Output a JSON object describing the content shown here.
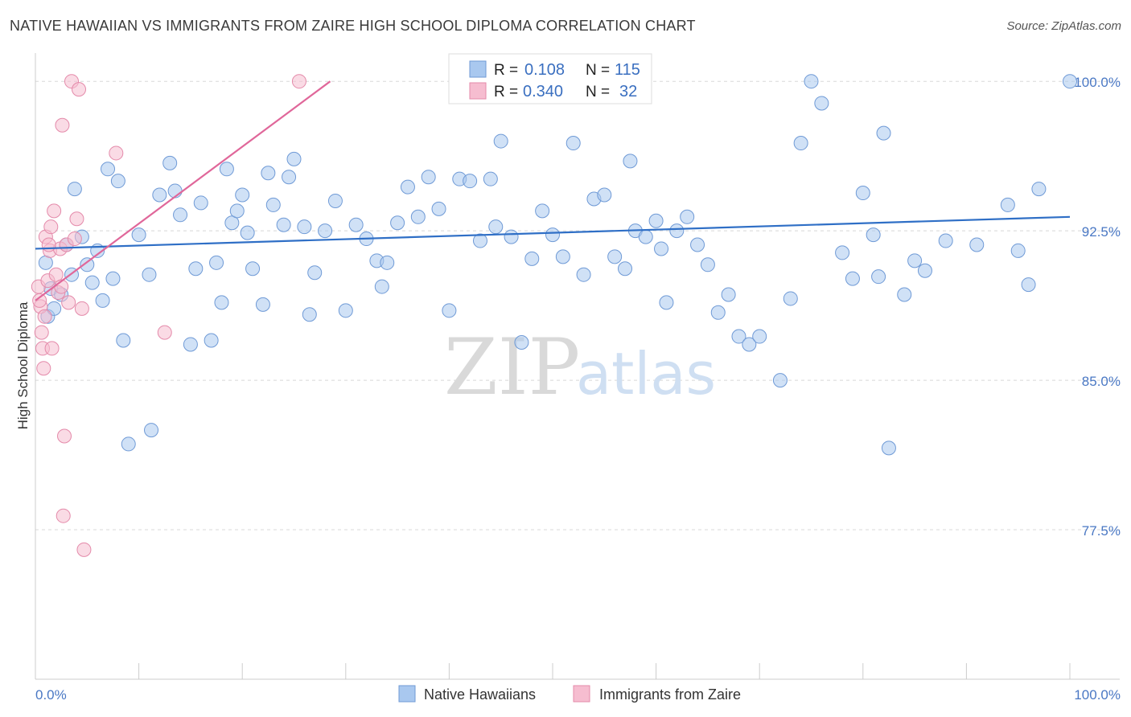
{
  "header": {
    "title": "NATIVE HAWAIIAN VS IMMIGRANTS FROM ZAIRE HIGH SCHOOL DIPLOMA CORRELATION CHART",
    "source": "Source: ZipAtlas.com"
  },
  "watermark": {
    "zip": "ZIP",
    "atlas": "atlas"
  },
  "chart_data": {
    "type": "scatter",
    "ylabel": "High School Diploma",
    "xlim": [
      0,
      100
    ],
    "ylim": [
      70.0,
      101.5
    ],
    "x_tick_labels": [
      {
        "value": 0,
        "label": "0.0%"
      },
      {
        "value": 100,
        "label": "100.0%"
      }
    ],
    "y_ticks": [
      {
        "value": 100.0,
        "label": "100.0%"
      },
      {
        "value": 92.5,
        "label": "92.5%"
      },
      {
        "value": 85.0,
        "label": "85.0%"
      },
      {
        "value": 77.5,
        "label": "77.5%"
      }
    ],
    "grid": true,
    "legend_position": "top-center",
    "colors": {
      "blue_fill": "#a9c8ef",
      "blue_stroke": "#6f9ad6",
      "blue_line": "#2f6fc6",
      "pink_fill": "#f6bdd0",
      "pink_stroke": "#e48aaa",
      "pink_line": "#e0679a",
      "grid": "#d8d8d8",
      "tick_text": "#4a78c4"
    },
    "stats": [
      {
        "r_label": "R =",
        "r_value": "0.108",
        "n_label": "N =",
        "n_value": "115"
      },
      {
        "r_label": "R =",
        "r_value": "0.340",
        "n_label": "N =",
        "n_value": "32"
      }
    ],
    "series": [
      {
        "name": "Native Hawaiians",
        "trend": [
          [
            0,
            91.6
          ],
          [
            100,
            93.2
          ]
        ],
        "points": [
          [
            1,
            90.9
          ],
          [
            1.5,
            89.6
          ],
          [
            1.2,
            88.2
          ],
          [
            2.5,
            89.3
          ],
          [
            3,
            91.8
          ],
          [
            3.5,
            90.3
          ],
          [
            3.8,
            94.6
          ],
          [
            4.5,
            92.2
          ],
          [
            5.5,
            89.9
          ],
          [
            6,
            91.5
          ],
          [
            6.5,
            89.0
          ],
          [
            7,
            95.6
          ],
          [
            8,
            95.0
          ],
          [
            8.5,
            87.0
          ],
          [
            9,
            81.8
          ],
          [
            10,
            92.3
          ],
          [
            11,
            90.3
          ],
          [
            11.2,
            82.5
          ],
          [
            12,
            94.3
          ],
          [
            13,
            95.9
          ],
          [
            13.5,
            94.5
          ],
          [
            14,
            93.3
          ],
          [
            15,
            86.8
          ],
          [
            15.5,
            90.6
          ],
          [
            16,
            93.9
          ],
          [
            17,
            87.0
          ],
          [
            17.5,
            90.9
          ],
          [
            18,
            88.9
          ],
          [
            18.5,
            95.6
          ],
          [
            19,
            92.9
          ],
          [
            19.5,
            93.5
          ],
          [
            20,
            94.3
          ],
          [
            21,
            90.6
          ],
          [
            22,
            88.8
          ],
          [
            22.5,
            95.4
          ],
          [
            23,
            93.8
          ],
          [
            24,
            92.8
          ],
          [
            24.5,
            95.2
          ],
          [
            25,
            96.1
          ],
          [
            26,
            92.7
          ],
          [
            26.5,
            88.3
          ],
          [
            27,
            90.4
          ],
          [
            28,
            92.5
          ],
          [
            29,
            94.0
          ],
          [
            30,
            88.5
          ],
          [
            31,
            92.8
          ],
          [
            32,
            92.1
          ],
          [
            33,
            91.0
          ],
          [
            34,
            90.9
          ],
          [
            35,
            92.9
          ],
          [
            36,
            94.7
          ],
          [
            37,
            93.2
          ],
          [
            38,
            95.2
          ],
          [
            39,
            93.6
          ],
          [
            40,
            88.5
          ],
          [
            41,
            95.1
          ],
          [
            42,
            95.0
          ],
          [
            43,
            92.0
          ],
          [
            44,
            95.1
          ],
          [
            45,
            97.0
          ],
          [
            46,
            92.2
          ],
          [
            47,
            86.9
          ],
          [
            48,
            91.1
          ],
          [
            49,
            93.5
          ],
          [
            50,
            92.3
          ],
          [
            51,
            91.2
          ],
          [
            52,
            96.9
          ],
          [
            53,
            90.3
          ],
          [
            54,
            94.1
          ],
          [
            55,
            94.3
          ],
          [
            56,
            91.2
          ],
          [
            57,
            90.6
          ],
          [
            57.5,
            96.0
          ],
          [
            58,
            92.5
          ],
          [
            59,
            92.2
          ],
          [
            60,
            93.0
          ],
          [
            61,
            88.9
          ],
          [
            62,
            92.5
          ],
          [
            63,
            93.2
          ],
          [
            64,
            91.8
          ],
          [
            65,
            90.8
          ],
          [
            66,
            88.4
          ],
          [
            67,
            89.3
          ],
          [
            68,
            87.2
          ],
          [
            69,
            86.8
          ],
          [
            70,
            87.2
          ],
          [
            72,
            85.0
          ],
          [
            74,
            96.9
          ],
          [
            75,
            100.0
          ],
          [
            76,
            98.9
          ],
          [
            78,
            91.4
          ],
          [
            79,
            90.1
          ],
          [
            80,
            94.4
          ],
          [
            81,
            92.3
          ],
          [
            81.5,
            90.2
          ],
          [
            82,
            97.4
          ],
          [
            82.5,
            81.6
          ],
          [
            84,
            89.3
          ],
          [
            85,
            91.0
          ],
          [
            88,
            92.0
          ],
          [
            91,
            91.8
          ],
          [
            94,
            93.8
          ],
          [
            95,
            91.5
          ],
          [
            96,
            89.8
          ],
          [
            100,
            100.0
          ],
          [
            1.8,
            88.6
          ],
          [
            5,
            90.8
          ],
          [
            7.5,
            90.1
          ],
          [
            20.5,
            92.4
          ],
          [
            33.5,
            89.7
          ],
          [
            44.5,
            92.7
          ],
          [
            60.5,
            91.6
          ],
          [
            73,
            89.1
          ],
          [
            86,
            90.5
          ],
          [
            97,
            94.6
          ]
        ]
      },
      {
        "name": "Immigrants from Zaire",
        "trend": [
          [
            0,
            89.0
          ],
          [
            28.5,
            100.0
          ]
        ],
        "points": [
          [
            0.3,
            89.7
          ],
          [
            0.5,
            88.7
          ],
          [
            0.6,
            87.4
          ],
          [
            0.7,
            86.6
          ],
          [
            0.8,
            85.6
          ],
          [
            1.0,
            92.2
          ],
          [
            1.2,
            90.0
          ],
          [
            1.4,
            91.5
          ],
          [
            1.5,
            92.7
          ],
          [
            1.6,
            86.6
          ],
          [
            1.8,
            93.5
          ],
          [
            2.0,
            90.3
          ],
          [
            2.2,
            89.4
          ],
          [
            2.4,
            91.6
          ],
          [
            2.5,
            89.7
          ],
          [
            2.6,
            97.8
          ],
          [
            2.8,
            82.2
          ],
          [
            3.0,
            91.8
          ],
          [
            3.2,
            88.9
          ],
          [
            3.5,
            100.0
          ],
          [
            3.8,
            92.1
          ],
          [
            4.0,
            93.1
          ],
          [
            4.2,
            99.6
          ],
          [
            4.5,
            88.6
          ],
          [
            4.7,
            76.5
          ],
          [
            2.7,
            78.2
          ],
          [
            7.8,
            96.4
          ],
          [
            12.5,
            87.4
          ],
          [
            25.5,
            100.0
          ],
          [
            0.9,
            88.2
          ],
          [
            1.3,
            91.8
          ],
          [
            0.4,
            89.0
          ]
        ]
      }
    ]
  }
}
